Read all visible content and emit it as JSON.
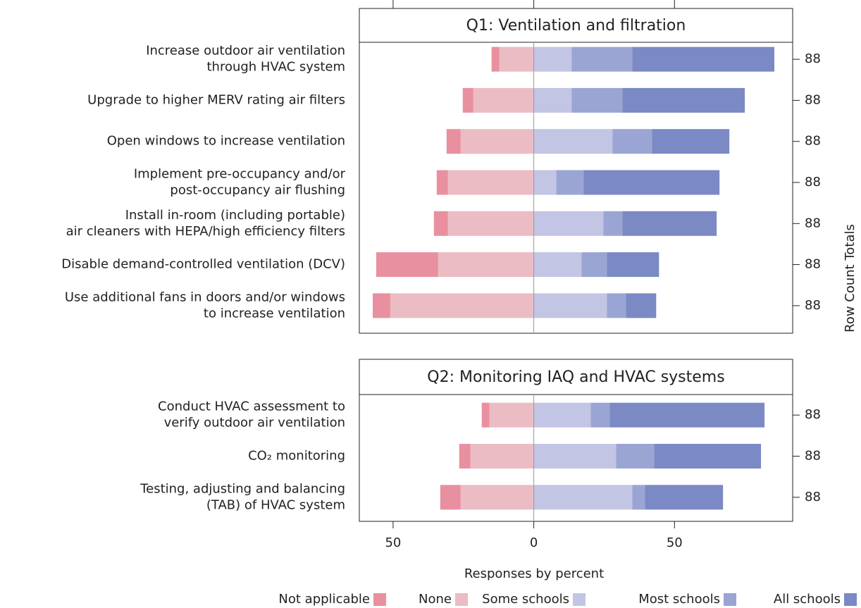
{
  "chart_data": {
    "type": "bar",
    "orientation": "horizontal",
    "xlabel": "Responses by percent",
    "y2label": "Row Count Totals",
    "xlim": [
      -62,
      92
    ],
    "xticks": [
      {
        "value": -50,
        "label": "50"
      },
      0,
      50
    ],
    "series": [
      {
        "name": "Not applicable",
        "color": "#e8909f",
        "side": "left"
      },
      {
        "name": "None",
        "color": "#ebbcc4",
        "side": "left"
      },
      {
        "name": "Some schools",
        "color": "#c2c5e3",
        "side": "right"
      },
      {
        "name": "Most schools",
        "color": "#9aa5d4",
        "side": "right"
      },
      {
        "name": "All schools",
        "color": "#7b89c4",
        "side": "right"
      }
    ],
    "panels": [
      {
        "title": "Q1: Ventilation and filtration",
        "categories": [
          [
            "Increase outdoor air ventilation",
            "through HVAC system"
          ],
          [
            "Upgrade to higher MERV rating air filters"
          ],
          [
            "Open windows to increase ventilation"
          ],
          [
            "Implement pre-occupancy and/or",
            "post-occupancy air flushing"
          ],
          [
            "Install in-room (including portable)",
            "air cleaners with HEPA/high efficiency filters"
          ],
          [
            "Disable demand-controlled ventilation (DCV)"
          ],
          [
            "Use additional fans in doors and/or windows",
            "to increase ventilation"
          ]
        ],
        "values": [
          [
            2.75,
            3.75,
            5,
            4,
            5,
            22,
            6.25
          ],
          [
            12.25,
            21.5,
            26,
            30.5,
            30.5,
            34,
            51
          ],
          [
            13.5,
            13.5,
            28,
            8,
            24.75,
            17,
            26
          ],
          [
            21.5,
            18,
            14,
            9.75,
            6.75,
            9,
            6.75
          ],
          [
            50.5,
            43.5,
            27.5,
            48.25,
            33.5,
            18.5,
            10.75
          ]
        ],
        "totals": [
          88,
          88,
          88,
          88,
          88,
          88,
          88
        ]
      },
      {
        "title": "Q2: Monitoring IAQ and HVAC systems",
        "categories": [
          [
            "Conduct HVAC assessment to",
            "verify outdoor air ventilation"
          ],
          [
            "CO₂ monitoring"
          ],
          [
            "Testing, adjusting and balancing",
            "(TAB) of HVAC system"
          ]
        ],
        "values": [
          [
            2.75,
            4,
            7.25
          ],
          [
            15.75,
            22.5,
            26
          ],
          [
            20.25,
            29.25,
            35
          ],
          [
            6.75,
            13.5,
            4.5
          ],
          [
            55,
            38,
            27.75
          ]
        ],
        "totals": [
          88,
          88,
          88
        ]
      }
    ]
  }
}
